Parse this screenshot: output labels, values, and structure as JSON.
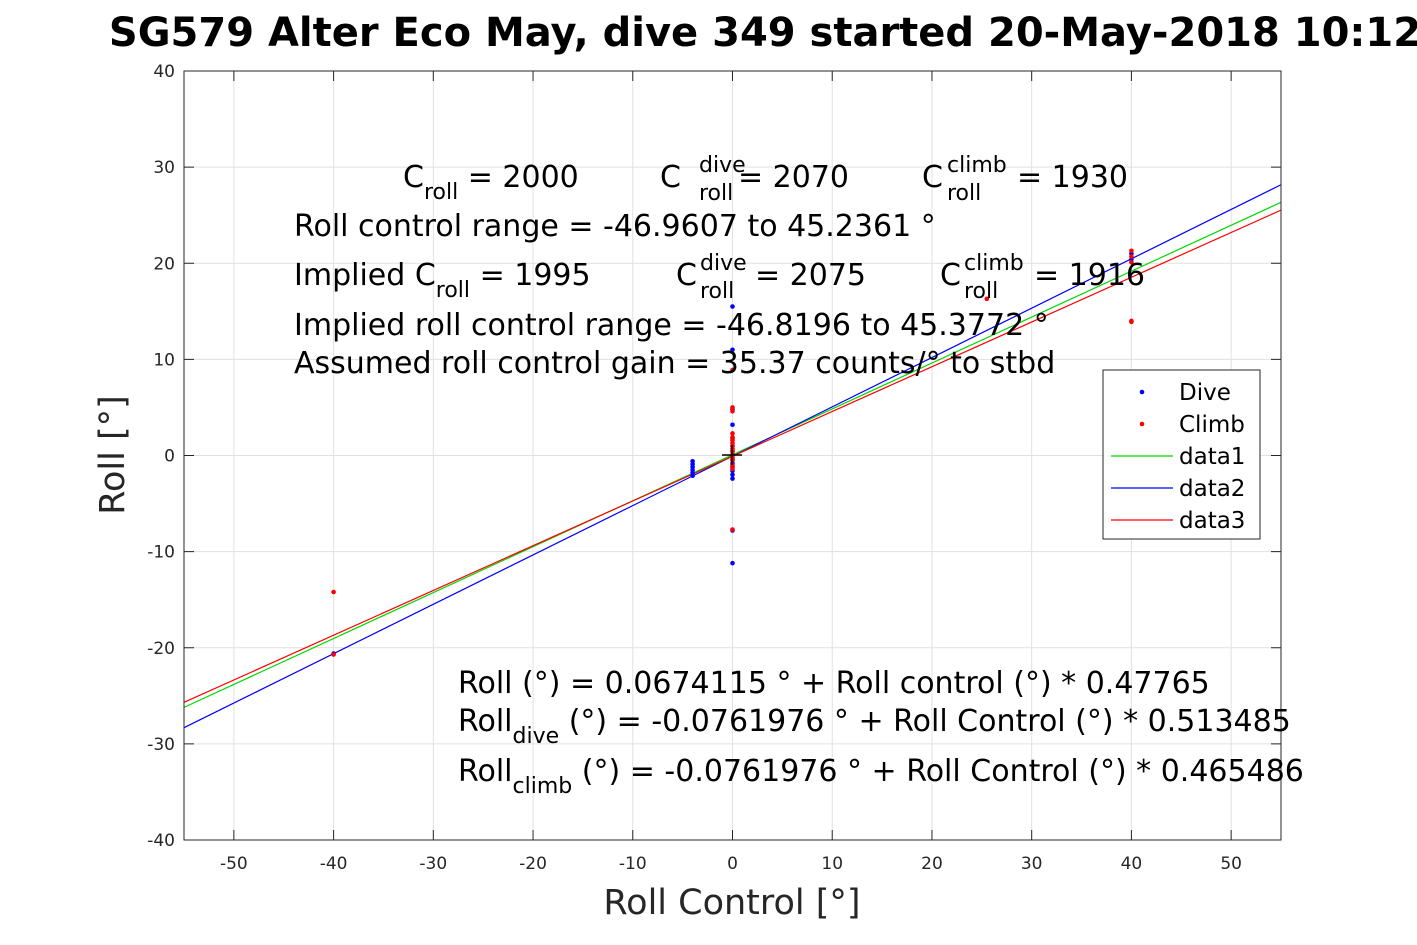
{
  "chart_data": {
    "type": "scatter",
    "title": "SG579 Alter Eco May, dive 349 started 20-May-2018 10:12",
    "xlabel": "Roll Control [°]",
    "ylabel": "Roll [°]",
    "xlim": [
      -55,
      55
    ],
    "ylim": [
      -40,
      40
    ],
    "x_ticks": [
      -50,
      -40,
      -30,
      -20,
      -10,
      0,
      10,
      20,
      30,
      40,
      50
    ],
    "y_ticks": [
      -40,
      -30,
      -20,
      -10,
      0,
      10,
      20,
      30,
      40
    ],
    "grid": true,
    "legend_position": "right",
    "annotations": {
      "c_roll": {
        "base": "C",
        "sub": "roll",
        "rest": " = 2000"
      },
      "c_roll_dive": {
        "base": "C",
        "sup": "dive",
        "sub": "roll",
        "rest": " = 2070"
      },
      "c_roll_climb": {
        "base": "C",
        "sup": "climb",
        "sub": "roll",
        "rest": " = 1930"
      },
      "roll_control_range": "Roll control range = -46.9607 to 45.2361 °",
      "implied_c_roll": {
        "prefix": "Implied C",
        "sub": "roll",
        "rest": " = 1995"
      },
      "implied_c_roll_dive": {
        "base": "C",
        "sup": "dive",
        "sub": "roll",
        "rest": " = 2075"
      },
      "implied_c_roll_climb": {
        "base": "C",
        "sup": "climb",
        "sub": "roll",
        "rest": " = 1916"
      },
      "implied_range": "Implied roll control range = -46.8196 to 45.3772 °",
      "assumed_gain": "Assumed roll control gain = 35.37 counts/° to stbd",
      "fit_all": "Roll (°) = 0.0674115 ° + Roll control (°) * 0.47765",
      "fit_dive": {
        "base": "Roll",
        "sub": "dive",
        "rest": " (°) = -0.0761976 ° + Roll Control (°) * 0.513485"
      },
      "fit_climb": {
        "base": "Roll",
        "sub": "climb",
        "rest": " (°) = -0.0761976 ° + Roll Control (°) * 0.465486"
      }
    },
    "series": [
      {
        "name": "Dive",
        "kind": "points",
        "color": "#0000ff",
        "points": [
          [
            -40,
            -20.6
          ],
          [
            -4,
            -0.6
          ],
          [
            -4,
            -0.9
          ],
          [
            -4,
            -1.2
          ],
          [
            -4,
            -1.5
          ],
          [
            -4,
            -1.8
          ],
          [
            -4,
            -2.1
          ],
          [
            0,
            15.5
          ],
          [
            0,
            11
          ],
          [
            0,
            4.8
          ],
          [
            0,
            3.2
          ],
          [
            0,
            1.8
          ],
          [
            0,
            1.0
          ],
          [
            0,
            0.5
          ],
          [
            0,
            0
          ],
          [
            0,
            -0.4
          ],
          [
            0,
            -0.8
          ],
          [
            0,
            -1.2
          ],
          [
            0,
            -1.6
          ],
          [
            0,
            -2.0
          ],
          [
            0,
            -2.4
          ],
          [
            0,
            -7.8
          ],
          [
            0,
            -11.2
          ],
          [
            40,
            21
          ],
          [
            40,
            20.4
          ]
        ]
      },
      {
        "name": "Climb",
        "kind": "points",
        "color": "#ff0000",
        "points": [
          [
            -40,
            -14.2
          ],
          [
            -40,
            -20.7
          ],
          [
            0,
            8.9
          ],
          [
            0,
            5.0
          ],
          [
            0,
            4.6
          ],
          [
            0,
            2.3
          ],
          [
            0,
            1.9
          ],
          [
            0,
            1.6
          ],
          [
            0,
            1.3
          ],
          [
            0,
            1.0
          ],
          [
            0,
            0.7
          ],
          [
            0,
            0.4
          ],
          [
            0,
            0.1
          ],
          [
            0,
            -0.2
          ],
          [
            0,
            -0.5
          ],
          [
            0,
            -1.0
          ],
          [
            0,
            -1.4
          ],
          [
            0,
            -7.7
          ],
          [
            25.5,
            16.3
          ],
          [
            40,
            21.3
          ],
          [
            40,
            20.7
          ],
          [
            40,
            20.1
          ],
          [
            40,
            14.0
          ],
          [
            40,
            13.9
          ]
        ]
      },
      {
        "name": "data1",
        "kind": "line",
        "color": "#00d800",
        "intercept": 0.0674115,
        "slope": 0.47765
      },
      {
        "name": "data2",
        "kind": "line",
        "color": "#0000ff",
        "intercept": -0.0761976,
        "slope": 0.513485
      },
      {
        "name": "data3",
        "kind": "line",
        "color": "#ff0000",
        "intercept": -0.0761976,
        "slope": 0.465486
      }
    ]
  }
}
